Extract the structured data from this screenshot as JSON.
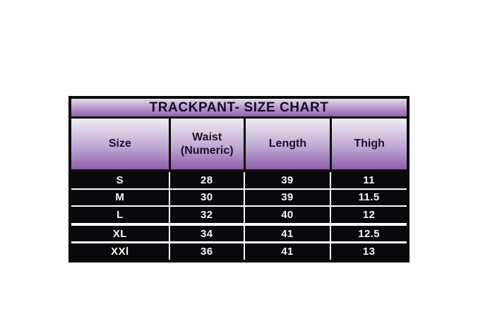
{
  "size_chart": {
    "title": "TRACKPANT- SIZE CHART",
    "columns": [
      {
        "label": "Size"
      },
      {
        "label": "Waist",
        "sublabel": "(Numeric)"
      },
      {
        "label": "Length"
      },
      {
        "label": "Thigh"
      }
    ],
    "rows": [
      {
        "size": "S",
        "waist": "28",
        "length": "39",
        "thigh": "11"
      },
      {
        "size": "M",
        "waist": "30",
        "length": "39",
        "thigh": "11.5"
      },
      {
        "size": "L",
        "waist": "32",
        "length": "40",
        "thigh": "12"
      },
      {
        "size": "XL",
        "waist": "34",
        "length": "41",
        "thigh": "12.5"
      },
      {
        "size": "XXl",
        "waist": "36",
        "length": "41",
        "thigh": "13"
      }
    ],
    "colors": {
      "border": "#0a0a0a",
      "title_gradient_top": "#e3dee9",
      "title_gradient_mid": "#b593c9",
      "title_gradient_bottom": "#9164ab",
      "header_gradient_top": "#f0ecf3",
      "header_gradient_mid": "#c2a8d5",
      "header_gradient_bottom": "#8d5fa9",
      "row_background": "#0b080d",
      "row_text": "#f7f7f7",
      "header_text": "#1a1028",
      "title_text": "#140c24",
      "page_background": "#ffffff"
    }
  },
  "chart_data": {
    "type": "table",
    "title": "TRACKPANT- SIZE CHART",
    "columns": [
      "Size",
      "Waist (Numeric)",
      "Length",
      "Thigh"
    ],
    "rows": [
      [
        "S",
        "28",
        "39",
        "11"
      ],
      [
        "M",
        "30",
        "39",
        "11.5"
      ],
      [
        "L",
        "32",
        "40",
        "12"
      ],
      [
        "XL",
        "34",
        "41",
        "12.5"
      ],
      [
        "XXl",
        "36",
        "41",
        "13"
      ]
    ],
    "notes": "Units implied: waist/length/thigh in inches; header band and title band have purple vertical gradient; data rows black with white text"
  }
}
